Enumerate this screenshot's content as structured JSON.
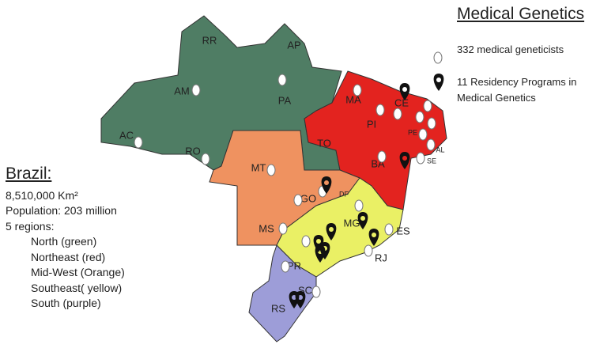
{
  "title": "Medical Genetics",
  "legend": [
    "332 medical geneticists",
    "11 Residency Programs  in Medical Genetics"
  ],
  "info": {
    "heading": "Brazil:",
    "area": "8,510,000 Km²",
    "population": "Population: 203 million",
    "regions_label": "5 regions:",
    "regions": [
      "North (green)",
      "Northeast (red)",
      "Mid-West (Orange)",
      "Southeast( yellow)",
      "South (purple)"
    ]
  },
  "states": [
    "RR",
    "AP",
    "AM",
    "PA",
    "MA",
    "CE",
    "PI",
    "AC",
    "RO",
    "TO",
    "BA",
    "MT",
    "GO",
    "DF",
    "MG",
    "ES",
    "MS",
    "RJ",
    "PR",
    "SC",
    "RS",
    "AL",
    "SE",
    "PE"
  ]
}
